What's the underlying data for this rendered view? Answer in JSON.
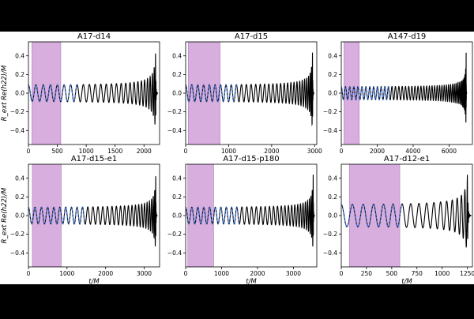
{
  "figure": {
    "ylabel": "R_ext Re(h22)/M",
    "xlabel": "t/M"
  },
  "colors": {
    "background": "#ffffff",
    "letterbox": "#000000",
    "waveform": "#000000",
    "fit": "#3a6fd1",
    "window": "#d7aedd",
    "window_stroke": "#b07cc0"
  },
  "chart_data": [
    {
      "type": "line",
      "title": "A17-d14",
      "xlim": [
        0,
        2270
      ],
      "ylim": [
        -0.55,
        0.55
      ],
      "xticks": [
        0,
        500,
        1000,
        1500,
        2000
      ],
      "xticklabels": [
        "0",
        "500",
        "1000",
        "1500",
        "2000"
      ],
      "yticks": [
        -0.4,
        -0.2,
        0.0,
        0.2,
        0.4
      ],
      "yticklabels": [
        "−0.4",
        "−0.2",
        "0.0",
        "0.2",
        "0.4"
      ],
      "window": [
        60,
        560
      ],
      "merger": 2200,
      "amp0": 0.09,
      "cycles": 26,
      "fit_end": 850,
      "show_ylabel": true,
      "show_xlabel": false
    },
    {
      "type": "line",
      "title": "A17-d15",
      "xlim": [
        0,
        3050
      ],
      "ylim": [
        -0.55,
        0.55
      ],
      "xticks": [
        0,
        1000,
        2000,
        3000
      ],
      "xticklabels": [
        "0",
        "1000",
        "2000",
        "3000"
      ],
      "yticks": [
        -0.4,
        -0.2,
        0.0,
        0.2,
        0.4
      ],
      "yticklabels": [
        "−0.4",
        "−0.2",
        "0.0",
        "0.2",
        "0.4"
      ],
      "window": [
        60,
        800
      ],
      "merger": 2950,
      "amp0": 0.09,
      "cycles": 32,
      "fit_end": 1200,
      "show_ylabel": false,
      "show_xlabel": false
    },
    {
      "type": "line",
      "title": "A147-d19",
      "xlim": [
        0,
        7300
      ],
      "ylim": [
        -0.55,
        0.55
      ],
      "xticks": [
        0,
        2000,
        4000,
        6000
      ],
      "xticklabels": [
        "0",
        "2000",
        "4000",
        "6000"
      ],
      "yticks": [
        -0.4,
        -0.2,
        0.0,
        0.2,
        0.4
      ],
      "yticklabels": [
        "−0.4",
        "−0.2",
        "0.0",
        "0.2",
        "0.4"
      ],
      "window": [
        150,
        1000
      ],
      "merger": 6950,
      "amp0": 0.07,
      "cycles": 46,
      "fit_end": 2700,
      "show_ylabel": false,
      "show_xlabel": false
    },
    {
      "type": "line",
      "title": "A17-d15-e1",
      "xlim": [
        0,
        3400
      ],
      "ylim": [
        -0.55,
        0.55
      ],
      "xticks": [
        0,
        1000,
        2000,
        3000
      ],
      "xticklabels": [
        "0",
        "1000",
        "2000",
        "3000"
      ],
      "yticks": [
        -0.4,
        -0.2,
        0.0,
        0.2,
        0.4
      ],
      "yticklabels": [
        "−0.4",
        "−0.2",
        "0.0",
        "0.2",
        "0.4"
      ],
      "window": [
        100,
        850
      ],
      "merger": 3300,
      "amp0": 0.09,
      "cycles": 30,
      "fit_end": 1450,
      "show_ylabel": true,
      "show_xlabel": true
    },
    {
      "type": "line",
      "title": "A17-d15-p180",
      "xlim": [
        0,
        3650
      ],
      "ylim": [
        -0.55,
        0.55
      ],
      "xticks": [
        0,
        1000,
        2000,
        3000
      ],
      "xticklabels": [
        "0",
        "1000",
        "2000",
        "3000"
      ],
      "yticks": [
        -0.4,
        -0.2,
        0.0,
        0.2,
        0.4
      ],
      "yticklabels": [
        "−0.4",
        "−0.2",
        "0.0",
        "0.2",
        "0.4"
      ],
      "window": [
        60,
        780
      ],
      "merger": 3550,
      "amp0": 0.09,
      "cycles": 32,
      "fit_end": 1500,
      "show_ylabel": false,
      "show_xlabel": true
    },
    {
      "type": "line",
      "title": "A17-d12-e1",
      "xlim": [
        0,
        1300
      ],
      "ylim": [
        -0.55,
        0.55
      ],
      "xticks": [
        0,
        250,
        500,
        750,
        1000,
        1250
      ],
      "xticklabels": [
        "0",
        "250",
        "500",
        "750",
        "1000",
        "1250"
      ],
      "yticks": [
        -0.4,
        -0.2,
        0.0,
        0.2,
        0.4
      ],
      "yticklabels": [
        "−0.4",
        "−0.2",
        "0.0",
        "0.2",
        "0.4"
      ],
      "window": [
        80,
        580
      ],
      "merger": 1250,
      "amp0": 0.12,
      "cycles": 17,
      "fit_end": 600,
      "show_ylabel": false,
      "show_xlabel": true
    }
  ]
}
